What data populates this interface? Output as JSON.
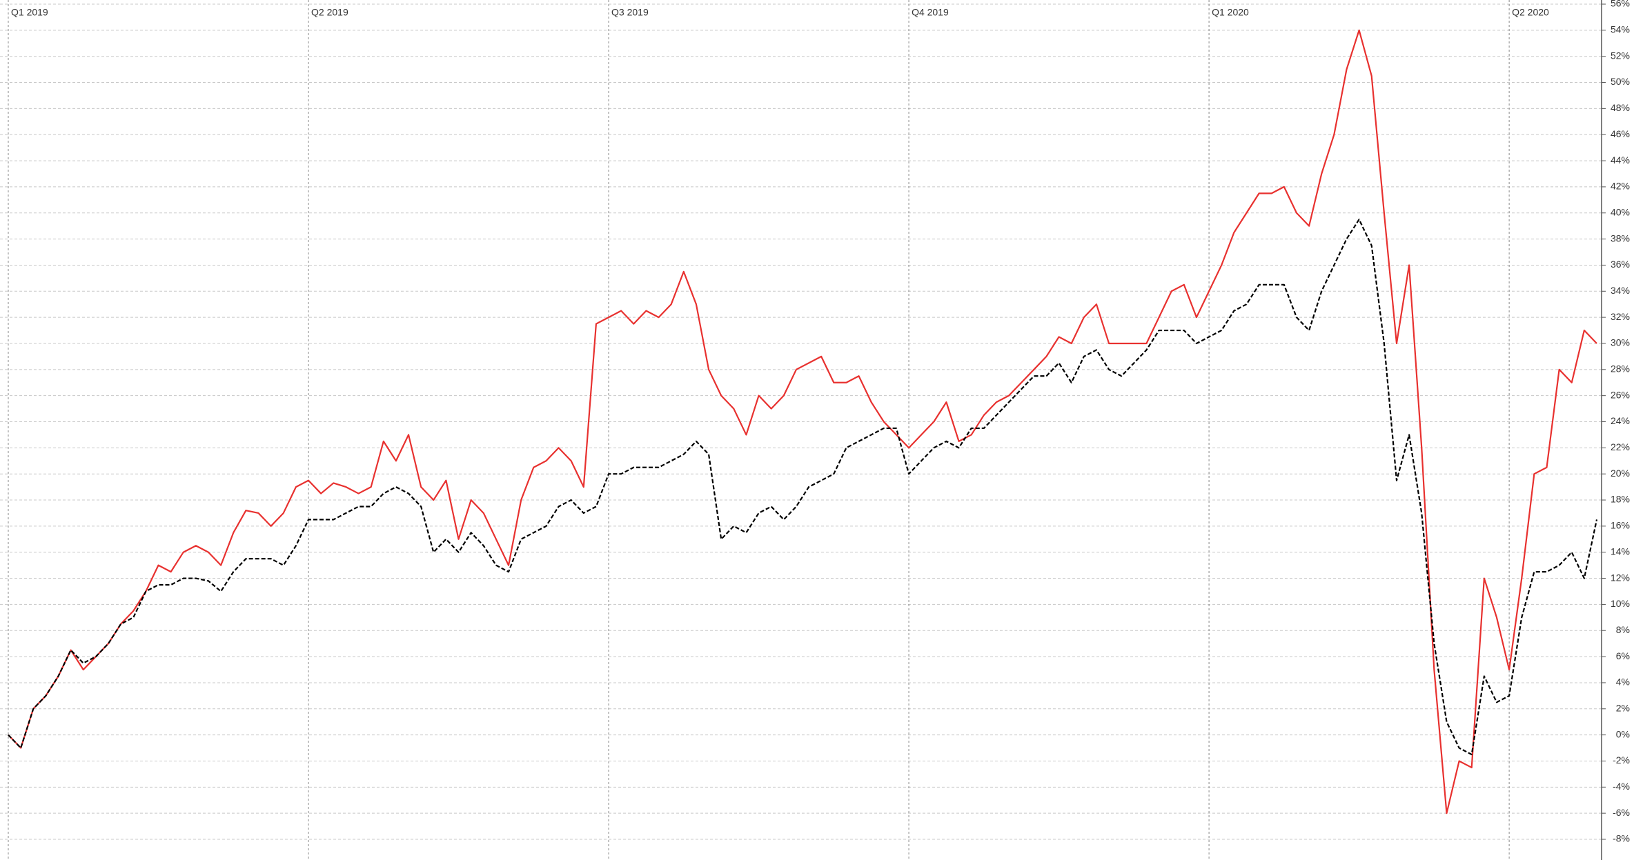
{
  "chart_data": {
    "type": "line",
    "categories": [
      "Q1 2019",
      null,
      null,
      null,
      null,
      null,
      null,
      null,
      null,
      null,
      null,
      null,
      null,
      null,
      null,
      null,
      null,
      null,
      null,
      null,
      null,
      null,
      null,
      null,
      "Q2 2019",
      null,
      null,
      null,
      null,
      null,
      null,
      null,
      null,
      null,
      null,
      null,
      null,
      null,
      null,
      null,
      null,
      null,
      null,
      null,
      null,
      null,
      null,
      null,
      "Q3 2019",
      null,
      null,
      null,
      null,
      null,
      null,
      null,
      null,
      null,
      null,
      null,
      null,
      null,
      null,
      null,
      null,
      null,
      null,
      null,
      null,
      null,
      null,
      null,
      "Q4 2019",
      null,
      null,
      null,
      null,
      null,
      null,
      null,
      null,
      null,
      null,
      null,
      null,
      null,
      null,
      null,
      null,
      null,
      null,
      null,
      null,
      null,
      null,
      null,
      "Q1 2020",
      null,
      null,
      null,
      null,
      null,
      null,
      null,
      null,
      null,
      null,
      null,
      null,
      null,
      null,
      null,
      null,
      null,
      null,
      null,
      null,
      null,
      null,
      null,
      "Q2 2020",
      null,
      null,
      null,
      null,
      null,
      null,
      null
    ],
    "series": [
      {
        "color": "#e8312f",
        "line_style": "solid",
        "values": [
          0,
          -1,
          2,
          3,
          4.5,
          6.5,
          5,
          6,
          7,
          8.5,
          9.5,
          11,
          13,
          12.5,
          14,
          14.5,
          14,
          13,
          15.5,
          17.2,
          17,
          16,
          17,
          19,
          19.5,
          18.5,
          19.3,
          19,
          18.5,
          19,
          22.5,
          21,
          23,
          19,
          18,
          19.5,
          15,
          18,
          17,
          15,
          13,
          18,
          20.5,
          21,
          22,
          21,
          19,
          31.5,
          32,
          32.5,
          31.5,
          32.5,
          32,
          33,
          35.5,
          33,
          28,
          26,
          25,
          23,
          26,
          25,
          26,
          28,
          28.5,
          29,
          27,
          27,
          27.5,
          25.5,
          24,
          23,
          22,
          23,
          24,
          25.5,
          22.5,
          23,
          24.5,
          25.5,
          26,
          27,
          28,
          29,
          30.5,
          30,
          32,
          33,
          30,
          30,
          30,
          30,
          32,
          34,
          34.5,
          32,
          34,
          36,
          38.5,
          40,
          41.5,
          41.5,
          42,
          40,
          39,
          43,
          46,
          51,
          54,
          50.5,
          40,
          30,
          36,
          22,
          5,
          -6,
          -2,
          -2.5,
          12,
          9,
          5,
          12,
          20,
          20.5,
          28,
          27,
          31,
          30
        ]
      },
      {
        "color": "#000000",
        "line_style": "dashed",
        "values": [
          0,
          -1,
          2,
          3,
          4.5,
          6.5,
          5.5,
          6,
          7,
          8.5,
          9,
          11,
          11.5,
          11.5,
          12,
          12,
          11.8,
          11,
          12.5,
          13.5,
          13.5,
          13.5,
          13,
          14.5,
          16.5,
          16.5,
          16.5,
          17,
          17.5,
          17.5,
          18.5,
          19,
          18.5,
          17.5,
          14,
          15,
          14,
          15.5,
          14.5,
          13,
          12.5,
          15,
          15.5,
          16,
          17.5,
          18,
          17,
          17.5,
          20,
          20,
          20.5,
          20.5,
          20.5,
          21,
          21.5,
          22.5,
          21.5,
          15,
          16,
          15.5,
          17,
          17.5,
          16.5,
          17.5,
          19,
          19.5,
          20,
          22,
          22.5,
          23,
          23.5,
          23.5,
          20,
          21,
          22,
          22.5,
          22,
          23.5,
          23.5,
          24.5,
          25.5,
          26.5,
          27.5,
          27.5,
          28.5,
          27,
          29,
          29.5,
          28,
          27.5,
          28.5,
          29.5,
          31,
          31,
          31,
          30,
          30.5,
          31,
          32.5,
          33,
          34.5,
          34.5,
          34.5,
          32,
          31,
          34,
          36,
          38,
          39.5,
          37.5,
          30,
          19.5,
          23,
          17,
          7,
          1,
          -1,
          -1.5,
          4.5,
          2.5,
          3,
          9,
          12.5,
          12.5,
          13,
          14,
          12,
          16.5
        ]
      }
    ],
    "ylim": [
      -8,
      56
    ],
    "yticks": [
      {
        "value": 56,
        "label": "56%"
      },
      {
        "value": 54,
        "label": "54%"
      },
      {
        "value": 52,
        "label": "52%"
      },
      {
        "value": 50,
        "label": "50%"
      },
      {
        "value": 48,
        "label": "48%"
      },
      {
        "value": 46,
        "label": "46%"
      },
      {
        "value": 44,
        "label": "44%"
      },
      {
        "value": 42,
        "label": "42%"
      },
      {
        "value": 40,
        "label": "40%"
      },
      {
        "value": 38,
        "label": "38%"
      },
      {
        "value": 36,
        "label": "36%"
      },
      {
        "value": 34,
        "label": "34%"
      },
      {
        "value": 32,
        "label": "32%"
      },
      {
        "value": 30,
        "label": "30%"
      },
      {
        "value": 28,
        "label": "28%"
      },
      {
        "value": 26,
        "label": "26%"
      },
      {
        "value": 24,
        "label": "24%"
      },
      {
        "value": 22,
        "label": "22%"
      },
      {
        "value": 20,
        "label": "20%"
      },
      {
        "value": 18,
        "label": "18%"
      },
      {
        "value": 16,
        "label": "16%"
      },
      {
        "value": 14,
        "label": "14%"
      },
      {
        "value": 12,
        "label": "12%"
      },
      {
        "value": 10,
        "label": "10%"
      },
      {
        "value": 8,
        "label": "8%"
      },
      {
        "value": 6,
        "label": "6%"
      },
      {
        "value": 4,
        "label": "4%"
      },
      {
        "value": 2,
        "label": "2%"
      },
      {
        "value": 0,
        "label": "0%"
      },
      {
        "value": -2,
        "label": "-2%"
      },
      {
        "value": -4,
        "label": "-4%"
      },
      {
        "value": -6,
        "label": "-6%"
      },
      {
        "value": -8,
        "label": "-8%"
      }
    ],
    "y_axis_side": "right",
    "grid": true
  }
}
